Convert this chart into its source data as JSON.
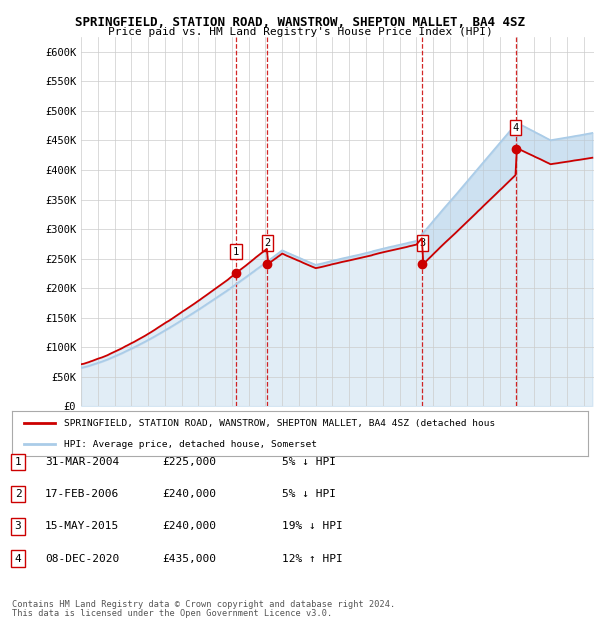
{
  "title1": "SPRINGFIELD, STATION ROAD, WANSTROW, SHEPTON MALLET, BA4 4SZ",
  "title2": "Price paid vs. HM Land Registry's House Price Index (HPI)",
  "ylabel_ticks": [
    "£0",
    "£50K",
    "£100K",
    "£150K",
    "£200K",
    "£250K",
    "£300K",
    "£350K",
    "£400K",
    "£450K",
    "£500K",
    "£550K",
    "£600K"
  ],
  "ytick_values": [
    0,
    50000,
    100000,
    150000,
    200000,
    250000,
    300000,
    350000,
    400000,
    450000,
    500000,
    550000,
    600000
  ],
  "ylim": [
    0,
    625000
  ],
  "x_start_year": 1995,
  "x_end_year": 2025,
  "transactions": [
    {
      "num": 1,
      "date_num": 2004.25,
      "price": 225000,
      "label": "1",
      "date_str": "31-MAR-2004",
      "price_str": "£225,000",
      "rel": "5% ↓ HPI"
    },
    {
      "num": 2,
      "date_num": 2006.12,
      "price": 240000,
      "label": "2",
      "date_str": "17-FEB-2006",
      "price_str": "£240,000",
      "rel": "5% ↓ HPI"
    },
    {
      "num": 3,
      "date_num": 2015.37,
      "price": 240000,
      "label": "3",
      "date_str": "15-MAY-2015",
      "price_str": "£240,000",
      "rel": "19% ↓ HPI"
    },
    {
      "num": 4,
      "date_num": 2020.92,
      "price": 435000,
      "label": "4",
      "date_str": "08-DEC-2020",
      "price_str": "£435,000",
      "rel": "12% ↑ HPI"
    }
  ],
  "legend_line1": "SPRINGFIELD, STATION ROAD, WANSTROW, SHEPTON MALLET, BA4 4SZ (detached hous",
  "legend_line2": "HPI: Average price, detached house, Somerset",
  "footnote1": "Contains HM Land Registry data © Crown copyright and database right 2024.",
  "footnote2": "This data is licensed under the Open Government Licence v3.0.",
  "hpi_color": "#aacce8",
  "price_color": "#cc0000",
  "vline_color": "#cc0000",
  "plot_bg": "#ffffff"
}
